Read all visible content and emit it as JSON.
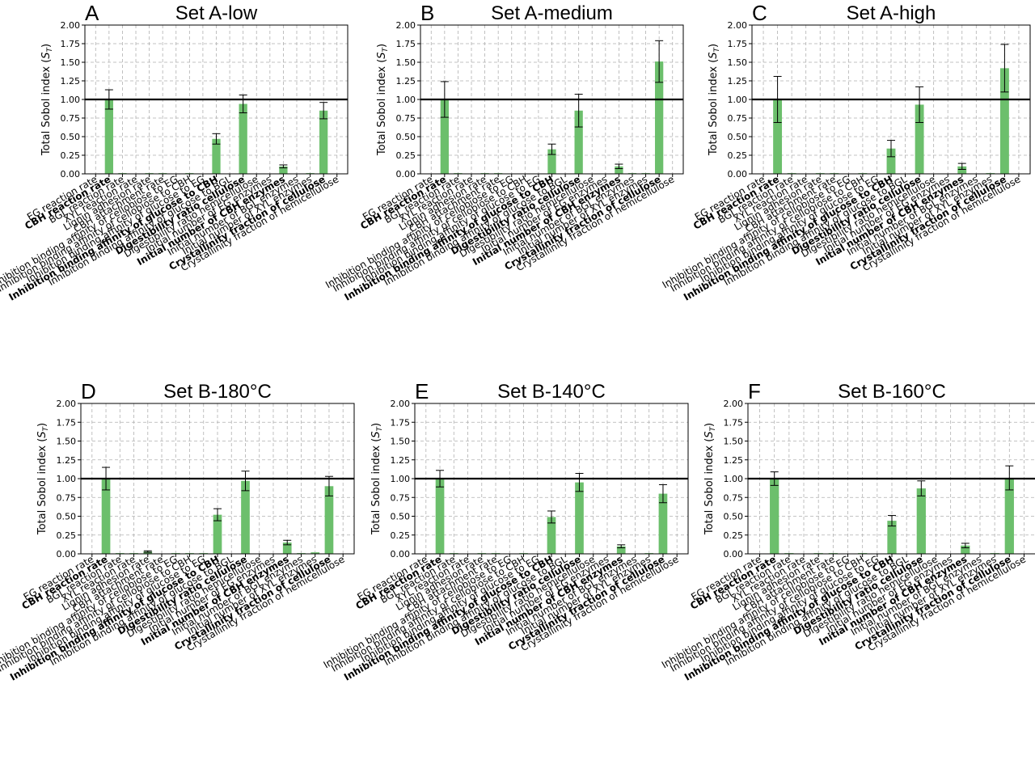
{
  "figure": {
    "ylabel": "Total Sobol index (S_T)",
    "ylabel_main": "Total Sobol index (",
    "ylabel_sym": "S",
    "ylabel_sub": "T",
    "ylabel_close": ")"
  },
  "chart_data": [
    {
      "type": "bar",
      "letter": "A",
      "title": "Set A-low",
      "ylim": [
        0,
        2.0
      ],
      "yticks": [
        "0.00",
        "0.25",
        "0.50",
        "0.75",
        "1.00",
        "1.25",
        "1.50",
        "1.75",
        "2.00"
      ],
      "reference_line": 1.0,
      "grid": true,
      "categories": [
        "EG reaction rate",
        "CBH reaction rate",
        "BGL reaction rate",
        "XYL reaction rate",
        "Lignin adhesion rate",
        "CBH attachment rate",
        "Inhibition binding affinity of cellobiose to EG",
        "Inhibition binding affinity of cellobiose to CBH",
        "Inhibition binding affinity of glucose to EG",
        "Inhibition binding affinity of glucose to CBH",
        "Inhibition binding affinity of glucose to BGL",
        "Digestibility ratio cellulose",
        "Digestibility ratio hemicellulose",
        "Initial number of EG enzymes",
        "Initial number of CBH enzymes",
        "Initial number of BGL enzymes",
        "Initial number of XYL enzymes",
        "Crystallinity fraction of cellulose",
        "Crystallinity fraction of hemicellulose"
      ],
      "bold": [
        false,
        true,
        false,
        false,
        false,
        false,
        false,
        false,
        false,
        true,
        false,
        true,
        false,
        false,
        true,
        false,
        false,
        true,
        false
      ],
      "values": [
        0.0,
        1.0,
        0.01,
        0.0,
        0.01,
        0.01,
        0.0,
        0.01,
        0.0,
        0.47,
        0.0,
        0.94,
        0.0,
        0.0,
        0.1,
        0.0,
        0.01,
        0.85,
        0.0
      ],
      "errors": [
        0.0,
        0.13,
        0.0,
        0.0,
        0.0,
        0.0,
        0.0,
        0.0,
        0.0,
        0.07,
        0.0,
        0.12,
        0.0,
        0.0,
        0.02,
        0.0,
        0.0,
        0.11,
        0.0
      ]
    },
    {
      "type": "bar",
      "letter": "B",
      "title": "Set A-medium",
      "ylim": [
        0,
        2.0
      ],
      "yticks": [
        "0.00",
        "0.25",
        "0.50",
        "0.75",
        "1.00",
        "1.25",
        "1.50",
        "1.75",
        "2.00"
      ],
      "reference_line": 1.0,
      "grid": true,
      "categories": [
        "EG reaction rate",
        "CBH reaction rate",
        "BGL reaction rate",
        "XYL reaction rate",
        "Lignin adhesion rate",
        "CBH attachment rate",
        "Inhibition binding affinity of cellobiose to EG",
        "Inhibition binding affinity of cellobiose to CBH",
        "Inhibition binding affinity of glucose to EG",
        "Inhibition binding affinity of glucose to CBH",
        "Inhibition binding affinity of glucose to BGL",
        "Digestibility ratio cellulose",
        "Digestibility ratio hemicellulose",
        "Initial number of EG enzymes",
        "Initial number of CBH enzymes",
        "Initial number of BGL enzymes",
        "Initial number of XYL enzymes",
        "Crystallinity fraction of cellulose",
        "Crystallinity fraction of hemicellulose"
      ],
      "bold": [
        false,
        true,
        false,
        false,
        false,
        false,
        false,
        false,
        false,
        true,
        false,
        true,
        false,
        false,
        true,
        false,
        false,
        true,
        false
      ],
      "values": [
        0.0,
        1.0,
        0.01,
        0.0,
        0.01,
        0.01,
        0.0,
        0.0,
        0.0,
        0.33,
        0.0,
        0.85,
        0.0,
        0.0,
        0.1,
        0.01,
        0.01,
        1.51,
        0.0
      ],
      "errors": [
        0.0,
        0.24,
        0.0,
        0.0,
        0.0,
        0.0,
        0.0,
        0.0,
        0.0,
        0.07,
        0.0,
        0.22,
        0.0,
        0.0,
        0.03,
        0.0,
        0.0,
        0.28,
        0.0
      ]
    },
    {
      "type": "bar",
      "letter": "C",
      "title": "Set A-high",
      "ylim": [
        0,
        2.0
      ],
      "yticks": [
        "0.00",
        "0.25",
        "0.50",
        "0.75",
        "1.00",
        "1.25",
        "1.50",
        "1.75",
        "2.00"
      ],
      "reference_line": 1.0,
      "grid": true,
      "categories": [
        "EG reaction rate",
        "CBH reaction rate",
        "BGL reaction rate",
        "XYL reaction rate",
        "Lignin adhesion rate",
        "CBH attachment rate",
        "Inhibition binding affinity of cellobiose to EG",
        "Inhibition binding affinity of cellobiose to CBH",
        "Inhibition binding affinity of glucose to EG",
        "Inhibition binding affinity of glucose to CBH",
        "Inhibition binding affinity of glucose to BGL",
        "Digestibility ratio cellulose",
        "Digestibility ratio hemicellulose",
        "Initial number of EG enzymes",
        "Initial number of CBH enzymes",
        "Initial number of BGL enzymes",
        "Initial number of XYL enzymes",
        "Crystallinity fraction of cellulose",
        "Crystallinity fraction of hemicellulose"
      ],
      "bold": [
        false,
        true,
        false,
        false,
        false,
        false,
        false,
        false,
        false,
        true,
        false,
        true,
        false,
        false,
        true,
        false,
        false,
        true,
        false
      ],
      "values": [
        0.0,
        1.0,
        0.01,
        0.0,
        0.01,
        0.01,
        0.0,
        0.01,
        0.0,
        0.34,
        0.0,
        0.93,
        0.0,
        0.0,
        0.1,
        0.0,
        0.01,
        1.42,
        0.0
      ],
      "errors": [
        0.0,
        0.31,
        0.0,
        0.0,
        0.0,
        0.0,
        0.0,
        0.0,
        0.0,
        0.11,
        0.0,
        0.24,
        0.0,
        0.0,
        0.04,
        0.0,
        0.0,
        0.32,
        0.0
      ]
    },
    {
      "type": "bar",
      "letter": "D",
      "title": "Set B-180°C",
      "ylim": [
        0,
        2.0
      ],
      "yticks": [
        "0.00",
        "0.25",
        "0.50",
        "0.75",
        "1.00",
        "1.25",
        "1.50",
        "1.75",
        "2.00"
      ],
      "reference_line": 1.0,
      "grid": true,
      "categories": [
        "EG reaction rate",
        "CBH reaction rate",
        "BGL reaction rate",
        "XYL reaction rate",
        "Lignin adhesion rate",
        "CBH attachment rate",
        "Inhibition binding affinity of cellobiose to EG",
        "Inhibition binding affinity of cellobiose to CBH",
        "Inhibition binding affinity of glucose to EG",
        "Inhibition binding affinity of glucose to CBH",
        "Inhibition binding affinity of glucose to BGL",
        "Digestibility ratio cellulose",
        "Digestibility ratio hemicellulose",
        "Initial number of EG enzymes",
        "Initial number of CBH enzymes",
        "Initial number of BGL enzymes",
        "Initial number of XYL enzymes",
        "Crystallinity fraction of cellulose",
        "Crystallinity fraction of hemicellulose"
      ],
      "bold": [
        false,
        true,
        false,
        false,
        false,
        false,
        false,
        false,
        false,
        true,
        false,
        true,
        false,
        false,
        true,
        false,
        false,
        true,
        false
      ],
      "values": [
        0.0,
        1.0,
        0.01,
        0.01,
        0.03,
        0.0,
        0.01,
        0.01,
        0.01,
        0.52,
        0.0,
        0.97,
        0.0,
        0.0,
        0.15,
        0.01,
        0.02,
        0.9,
        0.0
      ],
      "errors": [
        0.0,
        0.15,
        0.0,
        0.0,
        0.01,
        0.0,
        0.0,
        0.0,
        0.0,
        0.08,
        0.0,
        0.13,
        0.0,
        0.0,
        0.03,
        0.0,
        0.0,
        0.13,
        0.0
      ]
    },
    {
      "type": "bar",
      "letter": "E",
      "title": "Set B-140°C",
      "ylim": [
        0,
        2.0
      ],
      "yticks": [
        "0.00",
        "0.25",
        "0.50",
        "0.75",
        "1.00",
        "1.25",
        "1.50",
        "1.75",
        "2.00"
      ],
      "reference_line": 1.0,
      "grid": true,
      "categories": [
        "EG reaction rate",
        "CBH reaction rate",
        "BGL reaction rate",
        "XYL reaction rate",
        "Lignin adhesion rate",
        "CBH attachment rate",
        "Inhibition binding affinity of cellobiose to EG",
        "Inhibition binding affinity of cellobiose to CBH",
        "Inhibition binding affinity of glucose to EG",
        "Inhibition binding affinity of glucose to CBH",
        "Inhibition binding affinity of glucose to BGL",
        "Digestibility ratio cellulose",
        "Digestibility ratio hemicellulose",
        "Initial number of EG enzymes",
        "Initial number of CBH enzymes",
        "Initial number of BGL enzymes",
        "Initial number of XYL enzymes",
        "Crystallinity fraction of cellulose",
        "Crystallinity fraction of hemicellulose"
      ],
      "bold": [
        false,
        true,
        false,
        false,
        false,
        false,
        false,
        false,
        false,
        true,
        false,
        true,
        false,
        false,
        true,
        false,
        false,
        true,
        false
      ],
      "values": [
        0.0,
        1.0,
        0.01,
        0.0,
        0.01,
        0.01,
        0.0,
        0.01,
        0.0,
        0.49,
        0.0,
        0.95,
        0.0,
        0.0,
        0.1,
        0.0,
        0.01,
        0.8,
        0.0
      ],
      "errors": [
        0.0,
        0.11,
        0.0,
        0.0,
        0.0,
        0.0,
        0.0,
        0.0,
        0.0,
        0.08,
        0.0,
        0.12,
        0.0,
        0.0,
        0.02,
        0.0,
        0.0,
        0.12,
        0.0
      ]
    },
    {
      "type": "bar",
      "letter": "F",
      "title": "Set B-160°C",
      "ylim": [
        0,
        2.0
      ],
      "yticks": [
        "0.00",
        "0.25",
        "0.50",
        "0.75",
        "1.00",
        "1.25",
        "1.50",
        "1.75",
        "2.00"
      ],
      "reference_line": 1.0,
      "grid": true,
      "categories": [
        "EG reaction rate",
        "CBH reaction rate",
        "BGL reaction rate",
        "XYL reaction rate",
        "Lignin adhesion rate",
        "CBH attachment rate",
        "Inhibition binding affinity of cellobiose to EG",
        "Inhibition binding affinity of cellobiose to CBH",
        "Inhibition binding affinity of glucose to EG",
        "Inhibition binding affinity of glucose to CBH",
        "Inhibition binding affinity of glucose to BGL",
        "Digestibility ratio cellulose",
        "Digestibility ratio hemicellulose",
        "Initial number of EG enzymes",
        "Initial number of CBH enzymes",
        "Initial number of BGL enzymes",
        "Initial number of XYL enzymes",
        "Crystallinity fraction of cellulose",
        "Crystallinity fraction of hemicellulose"
      ],
      "bold": [
        false,
        true,
        false,
        false,
        false,
        false,
        false,
        false,
        false,
        true,
        false,
        true,
        false,
        false,
        true,
        false,
        false,
        true,
        false
      ],
      "values": [
        0.0,
        1.0,
        0.01,
        0.0,
        0.01,
        0.01,
        0.0,
        0.01,
        0.0,
        0.44,
        0.0,
        0.87,
        0.0,
        0.0,
        0.11,
        0.0,
        0.01,
        1.01,
        0.0
      ],
      "errors": [
        0.0,
        0.09,
        0.0,
        0.0,
        0.0,
        0.0,
        0.0,
        0.0,
        0.0,
        0.07,
        0.0,
        0.1,
        0.0,
        0.0,
        0.03,
        0.0,
        0.0,
        0.16,
        0.0
      ]
    }
  ]
}
